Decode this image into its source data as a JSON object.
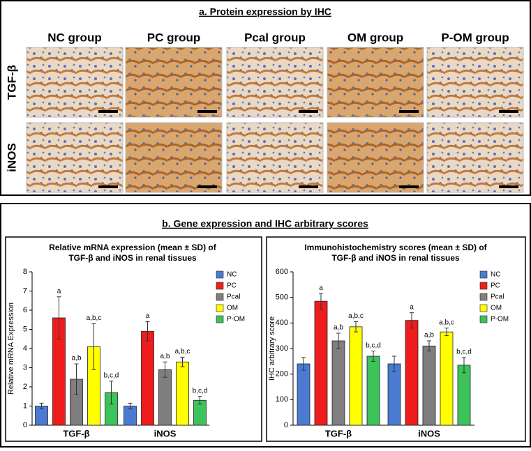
{
  "panel_a": {
    "title": "a. Protein expression by IHC",
    "columns": [
      "NC group",
      "PC group",
      "Pcal group",
      "OM  group",
      "P-OM  group"
    ],
    "rows": [
      "TGF-β",
      "iNOS"
    ]
  },
  "panel_b": {
    "title": "b. Gene expression and IHC arbitrary scores"
  },
  "chart_data": [
    {
      "type": "bar",
      "title": [
        "Relative mRNA expression (mean ± SD) of",
        "TGF-β and iNOS in renal tissues"
      ],
      "y_label": "Relative mRNA Expression",
      "categories": [
        "TGF-β",
        "iNOS"
      ],
      "ylim": [
        0,
        8
      ],
      "yticks": [
        0,
        1,
        2,
        3,
        4,
        5,
        6,
        7,
        8
      ],
      "legend": "top-right",
      "series": [
        {
          "name": "NC",
          "color": "#4a7bd0",
          "values": [
            1,
            1
          ],
          "errors": [
            0.15,
            0.15
          ]
        },
        {
          "name": "PC",
          "color": "#ee1c1c",
          "values": [
            5.6,
            4.9
          ],
          "errors": [
            1.1,
            0.5
          ],
          "annotations": [
            "a",
            "a"
          ]
        },
        {
          "name": "Pcal",
          "color": "#7f7f7f",
          "values": [
            2.4,
            2.9
          ],
          "errors": [
            0.8,
            0.4
          ],
          "annotations": [
            "a,b",
            "a,b"
          ]
        },
        {
          "name": "OM",
          "color": "#ffff00",
          "values": [
            4.1,
            3.3
          ],
          "errors": [
            1.2,
            0.25
          ],
          "annotations": [
            "a,b,c",
            "a,b,c"
          ]
        },
        {
          "name": "P-OM",
          "color": "#3cc35a",
          "values": [
            1.7,
            1.3
          ],
          "errors": [
            0.6,
            0.2
          ],
          "annotations": [
            "b,c,d",
            "b,c,d"
          ]
        }
      ]
    },
    {
      "type": "bar",
      "title": [
        "Immunohistochemistry scores (mean ± SD) of",
        "TGF-β and iNOS in renal tissues"
      ],
      "y_label": "IHC arbitrary score",
      "categories": [
        "TGF-β",
        "iNOS"
      ],
      "ylim": [
        0,
        600
      ],
      "yticks": [
        0,
        100,
        200,
        300,
        400,
        500,
        600
      ],
      "legend": "top-right",
      "series": [
        {
          "name": "NC",
          "color": "#4a7bd0",
          "values": [
            240,
            240
          ],
          "errors": [
            25,
            30
          ]
        },
        {
          "name": "PC",
          "color": "#ee1c1c",
          "values": [
            485,
            410
          ],
          "errors": [
            30,
            30
          ],
          "annotations": [
            "a",
            "a"
          ]
        },
        {
          "name": "Pcal",
          "color": "#7f7f7f",
          "values": [
            330,
            310
          ],
          "errors": [
            30,
            20
          ],
          "annotations": [
            "a,b",
            "a,b"
          ]
        },
        {
          "name": "OM",
          "color": "#ffff00",
          "values": [
            385,
            365
          ],
          "errors": [
            20,
            15
          ],
          "annotations": [
            "a,b,c",
            "a,b,c"
          ]
        },
        {
          "name": "P-OM",
          "color": "#3cc35a",
          "values": [
            270,
            235
          ],
          "errors": [
            20,
            30
          ],
          "annotations": [
            "b,c,d",
            "b,c,d"
          ]
        }
      ]
    }
  ]
}
